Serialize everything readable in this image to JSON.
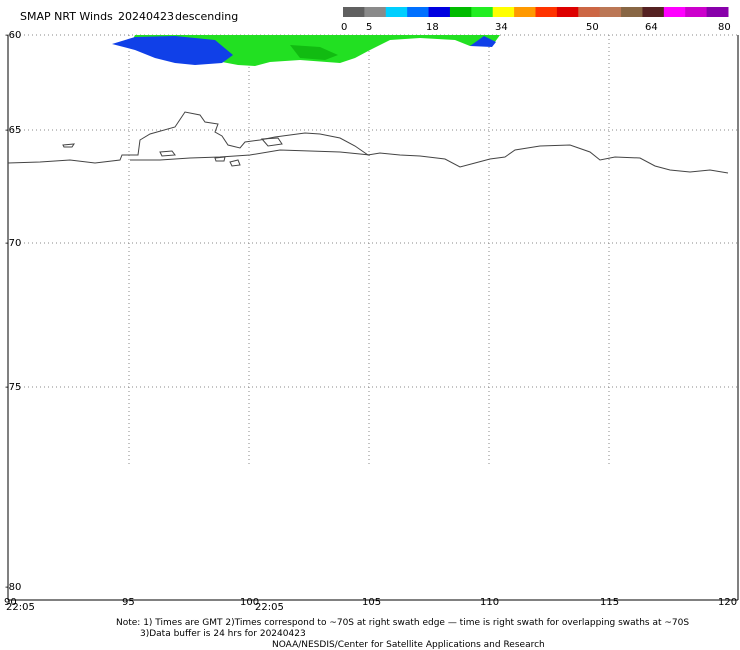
{
  "header": {
    "title": "SMAP NRT Winds",
    "date": "20240423",
    "pass": "descending"
  },
  "colorbar": {
    "ticks": [
      "0",
      "5",
      "18",
      "34",
      "50",
      "64",
      "80"
    ],
    "stops": [
      "#606060",
      "#8a8a8a",
      "#00cfff",
      "#0070ff",
      "#0000e0",
      "#00bb00",
      "#22ee22",
      "#ffff00",
      "#ff9900",
      "#ff3300",
      "#dd0000",
      "#cc6644",
      "#bb7755",
      "#886644",
      "#552222",
      "#ff00ff",
      "#cc00cc",
      "#8800aa"
    ]
  },
  "axes": {
    "lat_labels": [
      "-60",
      "-65",
      "-70",
      "-75",
      "-80"
    ],
    "lon_labels": [
      "90",
      "95",
      "100",
      "105",
      "110",
      "115",
      "120"
    ],
    "times": [
      "22:05",
      "22:05"
    ]
  },
  "swath_colors": {
    "green": "#22e022",
    "dark_green": "#11bb11",
    "blue": "#1040e8",
    "light_blue": "#2a6cff"
  },
  "footer": {
    "note_line1": "Note: 1) Times are GMT 2)Times correspond to ~70S at right swath edge — time is right swath for overlapping swaths at ~70S",
    "note_line2": "3)Data buffer is 24 hrs for 20240423",
    "credit": "NOAA/NESDIS/Center for Satellite Applications and Research"
  }
}
